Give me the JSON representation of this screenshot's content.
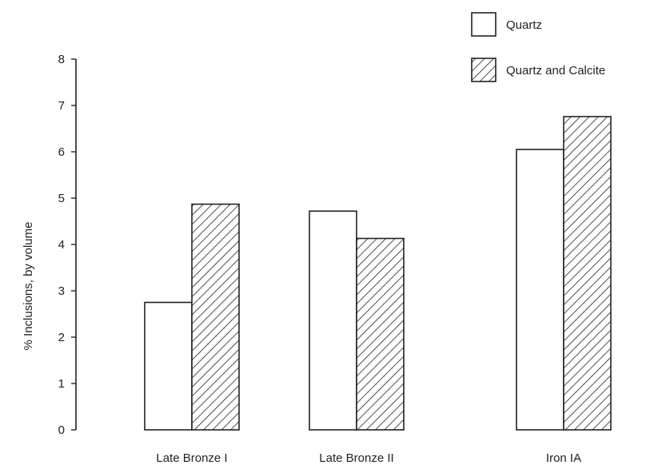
{
  "chart_data": {
    "type": "bar",
    "categories": [
      "Late Bronze I",
      "Late Bronze II",
      "Iron IA"
    ],
    "series": [
      {
        "name": "Quartz",
        "values": [
          2.75,
          4.72,
          6.05
        ],
        "pattern": "none"
      },
      {
        "name": "Quartz and Calcite",
        "values": [
          4.87,
          4.13,
          6.76
        ],
        "pattern": "diagonal-hatch"
      }
    ],
    "ylabel": "% Inclusions, by volume",
    "ylim": [
      0,
      8
    ],
    "yticks": [
      0,
      1,
      2,
      3,
      4,
      5,
      6,
      7,
      8
    ],
    "grid": false,
    "legend_position": "top-right",
    "colors": {
      "ink": "#222222",
      "background": "#ffffff"
    }
  }
}
